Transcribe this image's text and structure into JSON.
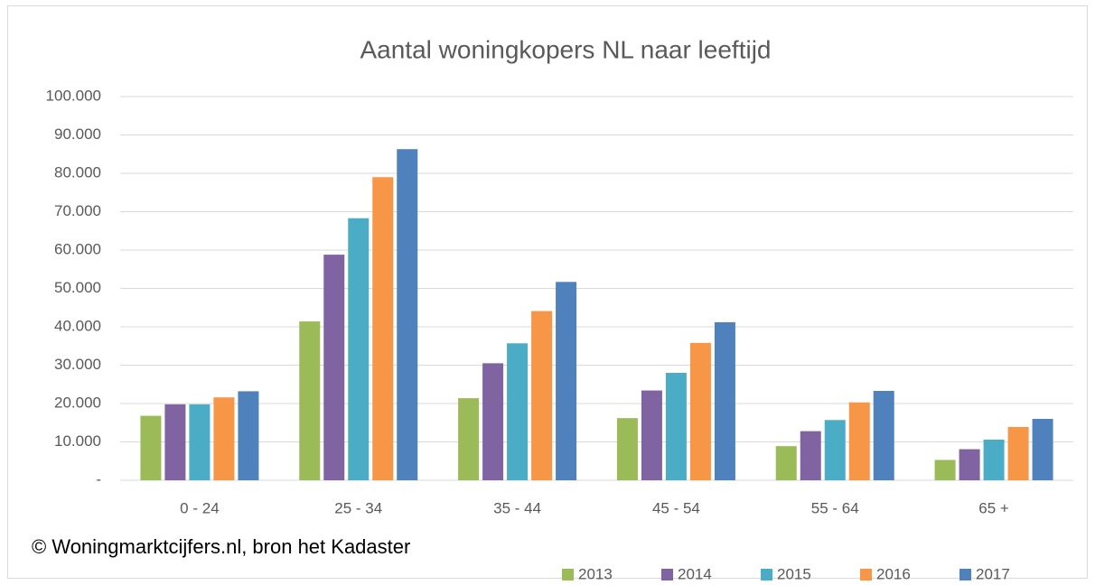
{
  "chart_data": {
    "type": "bar",
    "title": "Aantal woningkopers NL naar leeftijd",
    "annotation": "© Woningmarktcijfers.nl, bron het Kadaster",
    "categories": [
      "0 - 24",
      "25 - 34",
      "35 - 44",
      "45 - 54",
      "55 - 64",
      "65 +"
    ],
    "series": [
      {
        "name": "2013",
        "color": "#9bbb59",
        "values": [
          16800,
          41400,
          21400,
          16200,
          8900,
          5300
        ]
      },
      {
        "name": "2014",
        "color": "#8064a2",
        "values": [
          19800,
          58800,
          30500,
          23400,
          12800,
          8100
        ]
      },
      {
        "name": "2015",
        "color": "#4bacc6",
        "values": [
          19800,
          68300,
          35700,
          28000,
          15700,
          10600
        ]
      },
      {
        "name": "2016",
        "color": "#f79646",
        "values": [
          21600,
          79000,
          44100,
          35800,
          20300,
          13900
        ]
      },
      {
        "name": "2017",
        "color": "#4f81bd",
        "values": [
          23200,
          86300,
          51700,
          41200,
          23300,
          16000
        ]
      }
    ],
    "ylim": [
      0,
      100000
    ],
    "yticks": [
      {
        "value": 0,
        "label": "-"
      },
      {
        "value": 10000,
        "label": "10.000"
      },
      {
        "value": 20000,
        "label": "20.000"
      },
      {
        "value": 30000,
        "label": "30.000"
      },
      {
        "value": 40000,
        "label": "40.000"
      },
      {
        "value": 50000,
        "label": "50.000"
      },
      {
        "value": 60000,
        "label": "60.000"
      },
      {
        "value": 70000,
        "label": "70.000"
      },
      {
        "value": 80000,
        "label": "80.000"
      },
      {
        "value": 90000,
        "label": "90.000"
      },
      {
        "value": 100000,
        "label": "100.000"
      }
    ],
    "grid": true,
    "legend": "bottom"
  }
}
